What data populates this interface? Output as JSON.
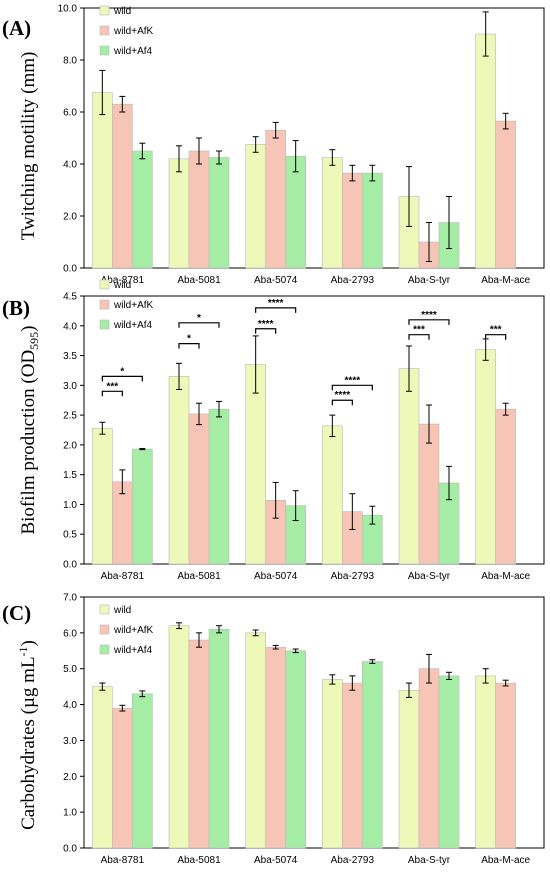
{
  "chart_data": [
    {
      "panel": "(A)",
      "type": "bar",
      "ylabel": "Twitching motility (mm)",
      "ylim": [
        0,
        10
      ],
      "yticks": [
        "0.0",
        "2.0",
        "4.0",
        "6.0",
        "8.0",
        "10.0"
      ],
      "categories": [
        "Aba-8781",
        "Aba-5081",
        "Aba-5074",
        "Aba-2793",
        "Aba-S-tyr",
        "Aba-M-ace"
      ],
      "series": [
        {
          "name": "wild",
          "color": "#eef8b8",
          "values": [
            6.75,
            4.2,
            4.75,
            4.25,
            2.75,
            9.0
          ],
          "errors": [
            0.85,
            0.5,
            0.3,
            0.3,
            1.15,
            0.85
          ]
        },
        {
          "name": "wild+AfK",
          "color": "#f7c5b6",
          "values": [
            6.3,
            4.5,
            5.3,
            3.65,
            1.0,
            5.65
          ],
          "errors": [
            0.3,
            0.5,
            0.3,
            0.3,
            0.75,
            0.3
          ]
        },
        {
          "name": "wild+Af4",
          "color": "#a5eda5",
          "values": [
            4.5,
            4.25,
            4.3,
            3.65,
            1.75,
            null
          ],
          "errors": [
            0.3,
            0.25,
            0.6,
            0.3,
            1.0,
            null
          ]
        }
      ],
      "legend": "top-left",
      "significance": []
    },
    {
      "panel": "(B)",
      "type": "bar",
      "ylabel_main": "Biofilm production (OD",
      "ylabel_sub": "595",
      "ylabel_end": ")",
      "ylim": [
        0,
        4.5
      ],
      "yticks": [
        "0.0",
        "0.5",
        "1.0",
        "1.5",
        "2.0",
        "2.5",
        "3.0",
        "3.5",
        "4.0",
        "4.5"
      ],
      "categories": [
        "Aba-8781",
        "Aba-5081",
        "Aba-5074",
        "Aba-2793",
        "Aba-S-tyr",
        "Aba-M-ace"
      ],
      "series": [
        {
          "name": "wild",
          "color": "#eef8b8",
          "values": [
            2.28,
            3.15,
            3.35,
            2.32,
            3.28,
            3.6
          ],
          "errors": [
            0.1,
            0.22,
            0.48,
            0.18,
            0.38,
            0.18
          ]
        },
        {
          "name": "wild+AfK",
          "color": "#f7c5b6",
          "values": [
            1.38,
            2.52,
            1.07,
            0.88,
            2.35,
            2.6
          ],
          "errors": [
            0.2,
            0.18,
            0.3,
            0.3,
            0.32,
            0.1
          ]
        },
        {
          "name": "wild+Af4",
          "color": "#a5eda5",
          "values": [
            1.93,
            2.6,
            0.98,
            0.82,
            1.36,
            null
          ],
          "errors": [
            0.01,
            0.13,
            0.25,
            0.15,
            0.28,
            null
          ]
        }
      ],
      "legend": "top-left",
      "significance": [
        {
          "cat": 0,
          "to": 1,
          "label": "***",
          "y": 2.9
        },
        {
          "cat": 0,
          "to": 2,
          "label": "*",
          "y": 3.15
        },
        {
          "cat": 1,
          "to": 1,
          "label": "*",
          "y": 3.7
        },
        {
          "cat": 1,
          "to": 2,
          "label": "*",
          "y": 4.05
        },
        {
          "cat": 2,
          "to": 1,
          "label": "****",
          "y": 3.95
        },
        {
          "cat": 2,
          "to": 2,
          "label": "****",
          "y": 4.3
        },
        {
          "cat": 3,
          "to": 1,
          "label": "****",
          "y": 2.75
        },
        {
          "cat": 3,
          "to": 2,
          "label": "****",
          "y": 3.0
        },
        {
          "cat": 4,
          "to": 1,
          "label": "***",
          "y": 3.85
        },
        {
          "cat": 4,
          "to": 2,
          "label": "****",
          "y": 4.1
        },
        {
          "cat": 5,
          "to": 1,
          "label": "***",
          "y": 3.85
        }
      ]
    },
    {
      "panel": "(C)",
      "type": "bar",
      "ylabel_main": "Carbohydrates (µg mL",
      "ylabel_sup": "-1",
      "ylabel_end": ")",
      "ylim": [
        0,
        7
      ],
      "yticks": [
        "0.0",
        "1.0",
        "2.0",
        "3.0",
        "4.0",
        "5.0",
        "6.0",
        "7.0"
      ],
      "categories": [
        "Aba-8781",
        "Aba-5081",
        "Aba-5074",
        "Aba-2793",
        "Aba-S-tyr",
        "Aba-M-ace"
      ],
      "series": [
        {
          "name": "wild",
          "color": "#eef8b8",
          "values": [
            4.5,
            6.2,
            6.0,
            4.7,
            4.4,
            4.8
          ],
          "errors": [
            0.1,
            0.08,
            0.08,
            0.13,
            0.2,
            0.2
          ]
        },
        {
          "name": "wild+AfK",
          "color": "#f7c5b6",
          "values": [
            3.9,
            5.8,
            5.6,
            4.6,
            5.0,
            4.6
          ],
          "errors": [
            0.08,
            0.2,
            0.05,
            0.2,
            0.4,
            0.08
          ]
        },
        {
          "name": "wild+Af4",
          "color": "#a5eda5",
          "values": [
            4.3,
            6.1,
            5.5,
            5.2,
            4.8,
            null
          ],
          "errors": [
            0.08,
            0.1,
            0.05,
            0.05,
            0.1,
            null
          ]
        }
      ],
      "legend": "top-left",
      "significance": []
    }
  ]
}
